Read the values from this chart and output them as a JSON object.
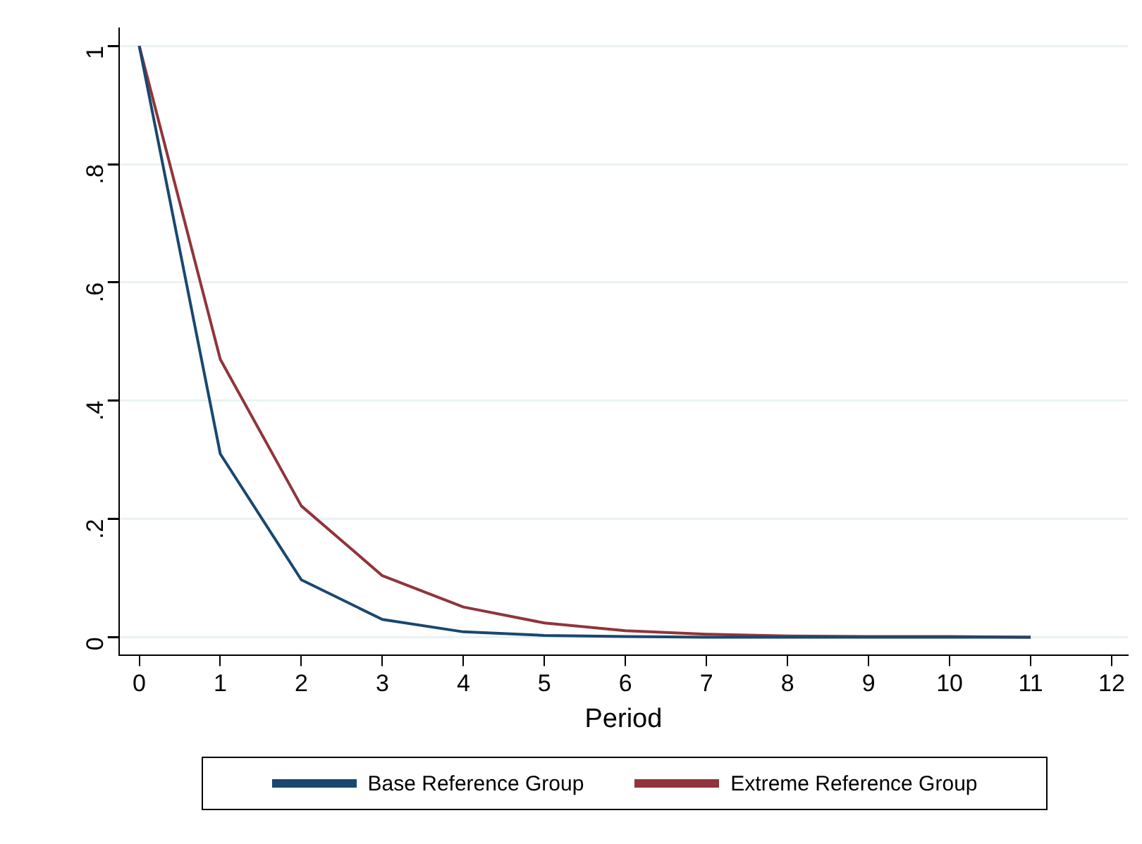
{
  "chart_data": {
    "type": "line",
    "xlabel": "Period",
    "x": [
      0,
      1,
      2,
      3,
      4,
      5,
      6,
      7,
      8,
      9,
      10,
      11
    ],
    "series": [
      {
        "name": "Base Reference Group",
        "color": "#1a476f",
        "values": [
          1,
          0.31,
          0.097,
          0.03,
          0.009,
          0.003,
          0.001,
          0,
          0,
          0,
          0,
          0
        ]
      },
      {
        "name": "Extreme Reference Group",
        "color": "#90353b",
        "values": [
          1,
          0.47,
          0.222,
          0.104,
          0.051,
          0.024,
          0.011,
          0.005,
          0.002,
          0.001,
          0.001,
          0
        ]
      }
    ],
    "xlim": [
      -0.25,
      12.2
    ],
    "xticks": [
      0,
      1,
      2,
      3,
      4,
      5,
      6,
      7,
      8,
      9,
      10,
      11,
      12
    ],
    "ylim": [
      -0.03,
      1.03
    ],
    "yticks": [
      0,
      {
        "value": 0.2,
        "label": ".2"
      },
      {
        "value": 0.4,
        "label": ".4"
      },
      {
        "value": 0.6,
        "label": ".6"
      },
      {
        "value": 0.8,
        "label": ".8"
      },
      1
    ],
    "grid": "y",
    "legend": "bottom",
    "marker": "none",
    "line_style": "solid"
  }
}
